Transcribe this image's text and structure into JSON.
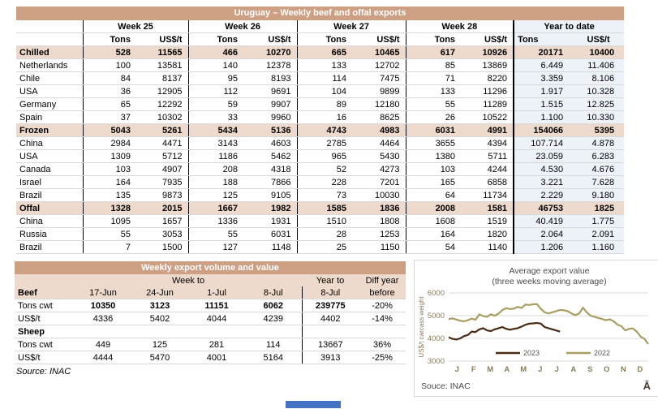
{
  "colors": {
    "title_bar": "#CDA084",
    "section_row": "#EDDACC",
    "ytd_col": "#EDF2F8",
    "grid": "#D9D9D9",
    "line_2023": "#4A2B14",
    "line_2022": "#A89D62",
    "scrollbar_blue": "#4472C4"
  },
  "top_table": {
    "title": "Uruguay – Weekly beef and offal exports",
    "week_headers": [
      "Week 25",
      "Week 26",
      "Week 27",
      "Week 28"
    ],
    "ytd_header": "Year to date",
    "unit_tons": "Tons",
    "unit_usdt": "US$/t",
    "rows": [
      {
        "label": "Chilled",
        "type": "section",
        "v": [
          "528",
          "11565",
          "466",
          "10270",
          "665",
          "10465",
          "617",
          "10926",
          "20171",
          "10400"
        ]
      },
      {
        "label": "Netherlands",
        "type": "data",
        "v": [
          "100",
          "13581",
          "140",
          "12378",
          "133",
          "12702",
          "85",
          "13869",
          "6.449",
          "11.406"
        ]
      },
      {
        "label": "Chile",
        "type": "data",
        "v": [
          "84",
          "8137",
          "95",
          "8193",
          "114",
          "7475",
          "71",
          "8220",
          "3.359",
          "8.106"
        ]
      },
      {
        "label": "USA",
        "type": "data",
        "v": [
          "36",
          "12905",
          "112",
          "9691",
          "104",
          "9899",
          "133",
          "11296",
          "1.917",
          "10.328"
        ]
      },
      {
        "label": "Germany",
        "type": "data",
        "v": [
          "65",
          "12292",
          "59",
          "9907",
          "89",
          "12180",
          "55",
          "11289",
          "1.515",
          "12.825"
        ]
      },
      {
        "label": "Spain",
        "type": "data",
        "v": [
          "37",
          "10302",
          "33",
          "9960",
          "16",
          "8625",
          "26",
          "10522",
          "1.100",
          "10.330"
        ]
      },
      {
        "label": "Frozen",
        "type": "section",
        "v": [
          "5043",
          "5261",
          "5434",
          "5136",
          "4743",
          "4983",
          "6031",
          "4991",
          "154066",
          "5395"
        ]
      },
      {
        "label": "China",
        "type": "data",
        "v": [
          "2984",
          "4471",
          "3143",
          "4603",
          "2785",
          "4464",
          "3655",
          "4394",
          "107.714",
          "4.878"
        ]
      },
      {
        "label": "USA",
        "type": "data",
        "v": [
          "1309",
          "5712",
          "1186",
          "5462",
          "965",
          "5430",
          "1380",
          "5711",
          "23.059",
          "6.283"
        ]
      },
      {
        "label": "Canada",
        "type": "data",
        "v": [
          "103",
          "4907",
          "208",
          "4318",
          "52",
          "4273",
          "103",
          "4244",
          "4.530",
          "4.676"
        ]
      },
      {
        "label": "Israel",
        "type": "data",
        "v": [
          "164",
          "7935",
          "188",
          "7866",
          "228",
          "7201",
          "165",
          "6858",
          "3.221",
          "7.628"
        ]
      },
      {
        "label": "Brazil",
        "type": "data",
        "v": [
          "135",
          "9873",
          "125",
          "9105",
          "73",
          "10030",
          "64",
          "11734",
          "2.229",
          "9.180"
        ]
      },
      {
        "label": "Offal",
        "type": "section",
        "v": [
          "1328",
          "2015",
          "1667",
          "1982",
          "1585",
          "1836",
          "2008",
          "1581",
          "46753",
          "1825"
        ]
      },
      {
        "label": "China",
        "type": "data",
        "v": [
          "1095",
          "1657",
          "1336",
          "1931",
          "1510",
          "1808",
          "1608",
          "1519",
          "40.419",
          "1.775"
        ]
      },
      {
        "label": "Russia",
        "type": "data",
        "v": [
          "55",
          "3053",
          "55",
          "6031",
          "28",
          "1253",
          "164",
          "1820",
          "2.064",
          "2.091"
        ]
      },
      {
        "label": "Brazil",
        "type": "data",
        "v": [
          "7",
          "1500",
          "127",
          "1148",
          "25",
          "1150",
          "54",
          "1140",
          "1.206",
          "1.160"
        ]
      }
    ]
  },
  "bottom_table": {
    "title": "Weekly export volume and value",
    "week_to": "Week to",
    "year_to": "Year to",
    "diff_year": "Diff year",
    "before": "before",
    "beef_label": "Beef",
    "dates": [
      "17-Jun",
      "24-Jun",
      "1-Jul",
      "8-Jul",
      "8-Jul"
    ],
    "rows": [
      {
        "label": "Tons cwt",
        "section": false,
        "bold_values": true,
        "v": [
          "10350",
          "3123",
          "11151",
          "6062",
          "239775",
          "-20%"
        ]
      },
      {
        "label": "US$/t",
        "section": false,
        "bold_values": false,
        "v": [
          "4336",
          "5402",
          "4044",
          "4239",
          "4402",
          "-14%"
        ]
      },
      {
        "label": "Sheep",
        "section": true,
        "bold_values": false,
        "v": [
          "",
          "",
          "",
          "",
          "",
          ""
        ]
      },
      {
        "label": "Tons cwt",
        "section": false,
        "bold_values": false,
        "v": [
          "449",
          "125",
          "281",
          "114",
          "13667",
          "36%"
        ]
      },
      {
        "label": "US$/t",
        "section": false,
        "bold_values": false,
        "v": [
          "4444",
          "5470",
          "4001",
          "5164",
          "3913",
          "-25%"
        ]
      }
    ],
    "source": "Source: INAC"
  },
  "chart_data": {
    "type": "line",
    "title": "Average export  value",
    "subtitle": "(three weeks moving average)",
    "ylabel": "US$/t carcass weight",
    "ylim": [
      3000,
      6000
    ],
    "yticks": [
      3000,
      4000,
      5000,
      6000
    ],
    "xtick_labels": [
      "J",
      "F",
      "M",
      "A",
      "M",
      "J",
      "J",
      "A",
      "S",
      "O",
      "N",
      "D"
    ],
    "weeks_per_year": 52,
    "grid": "on",
    "legend_position": "inside-bottom",
    "series": [
      {
        "name": "2023",
        "color": "#4A2B14",
        "values": [
          4050,
          3980,
          3950,
          4000,
          4100,
          4150,
          4300,
          4280,
          4400,
          4450,
          4350,
          4320,
          4400,
          4450,
          4500,
          4420,
          4380,
          4420,
          4450,
          4520,
          4600,
          4650,
          4660,
          4680,
          4650,
          4500,
          4450,
          4400,
          4350,
          4300
        ]
      },
      {
        "name": "2022",
        "color": "#A89D62",
        "values": [
          4850,
          4880,
          4830,
          4780,
          4750,
          4800,
          4870,
          4820,
          5060,
          4980,
          4950,
          5060,
          5000,
          5090,
          5250,
          5330,
          5290,
          5310,
          5390,
          5340,
          5490,
          5470,
          5500,
          5510,
          5300,
          5150,
          5100,
          5150,
          5200,
          5250,
          5240,
          5200,
          5100,
          5020,
          5100,
          5350,
          5140,
          5000,
          4950,
          4900,
          4850,
          4800,
          4840,
          4750,
          4600,
          4540,
          4350,
          4420,
          4440,
          4300,
          4080,
          3980,
          3750
        ]
      }
    ],
    "source": "Souce: INAC",
    "logo": "Ā"
  }
}
